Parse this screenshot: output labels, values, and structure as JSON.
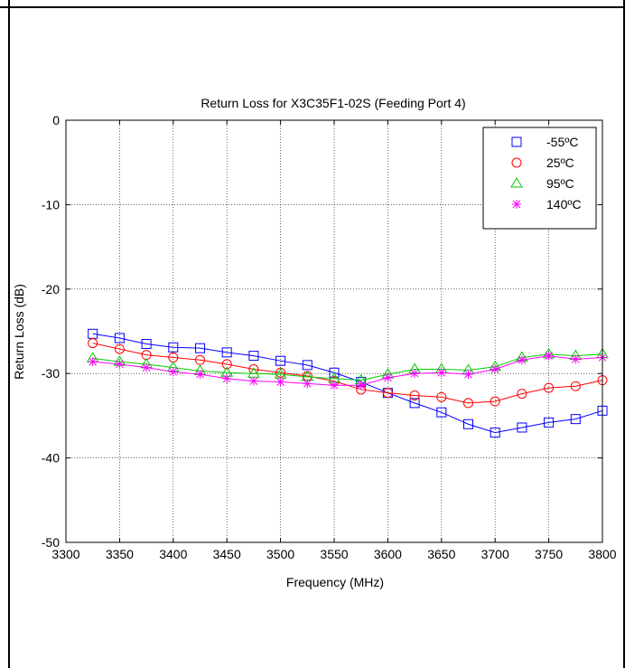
{
  "chart_data": {
    "type": "line",
    "title": "Return Loss for X3C35F1-02S (Feeding Port 4)",
    "xlabel": "Frequency (MHz)",
    "ylabel": "Return Loss (dB)",
    "xlim": [
      3300,
      3800
    ],
    "ylim": [
      -50,
      0
    ],
    "xticks": [
      3300,
      3350,
      3400,
      3450,
      3500,
      3550,
      3600,
      3650,
      3700,
      3750,
      3800
    ],
    "yticks": [
      0,
      -10,
      -20,
      -30,
      -40,
      -50
    ],
    "grid": true,
    "legend_position": "top-right",
    "x": [
      3325,
      3350,
      3375,
      3400,
      3425,
      3450,
      3475,
      3500,
      3525,
      3550,
      3575,
      3600,
      3625,
      3650,
      3675,
      3700,
      3725,
      3750,
      3775,
      3800
    ],
    "series": [
      {
        "name": "-55ºC",
        "color": "#0000ff",
        "marker": "square",
        "values": [
          -25.3,
          -25.8,
          -26.5,
          -26.9,
          -27.0,
          -27.5,
          -27.9,
          -28.5,
          -29.0,
          -29.9,
          -31.0,
          -32.3,
          -33.5,
          -34.6,
          -36.0,
          -37.0,
          -36.4,
          -35.8,
          -35.4,
          -34.4
        ]
      },
      {
        "name": "25ºC",
        "color": "#ff0000",
        "marker": "circle",
        "values": [
          -26.4,
          -27.1,
          -27.8,
          -28.1,
          -28.4,
          -28.9,
          -29.5,
          -29.9,
          -30.3,
          -30.9,
          -31.9,
          -32.3,
          -32.6,
          -32.8,
          -33.5,
          -33.3,
          -32.4,
          -31.7,
          -31.5,
          -30.8
        ]
      },
      {
        "name": "95ºC",
        "color": "#00cc00",
        "marker": "triangle",
        "values": [
          -28.2,
          -28.6,
          -28.9,
          -29.3,
          -29.7,
          -29.9,
          -30.0,
          -30.1,
          -30.4,
          -30.6,
          -30.8,
          -30.1,
          -29.5,
          -29.5,
          -29.6,
          -29.2,
          -28.1,
          -27.7,
          -27.9,
          -27.7
        ]
      },
      {
        "name": "140ºC",
        "color": "#ff00ff",
        "marker": "star",
        "values": [
          -28.6,
          -28.9,
          -29.3,
          -29.8,
          -30.1,
          -30.6,
          -30.9,
          -31.0,
          -31.2,
          -31.4,
          -31.4,
          -30.5,
          -30.0,
          -29.9,
          -30.1,
          -29.5,
          -28.4,
          -27.9,
          -28.3,
          -28.1
        ]
      }
    ]
  }
}
